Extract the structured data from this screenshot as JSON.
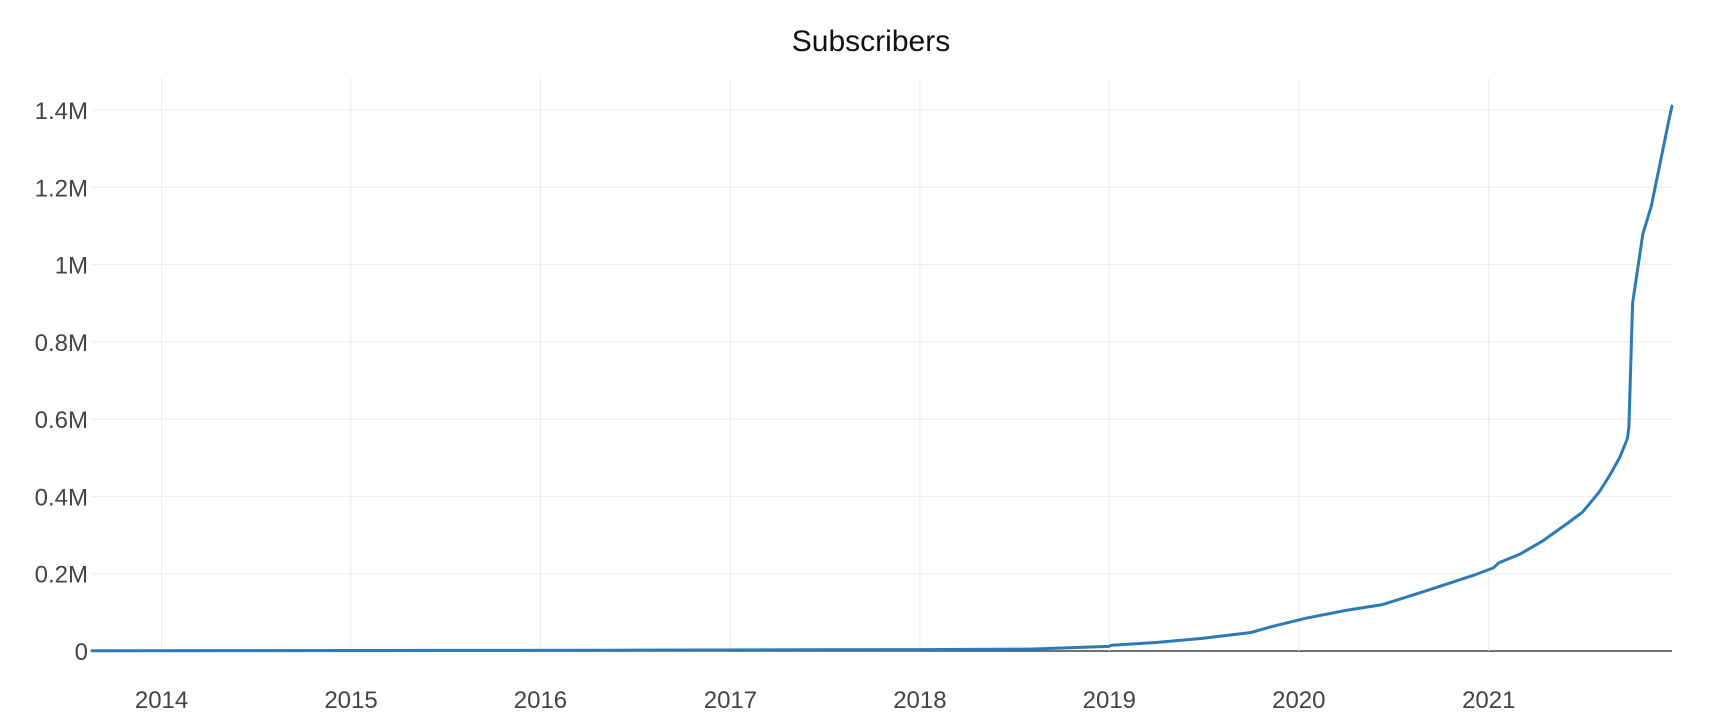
{
  "chart_data": {
    "type": "line",
    "title": "Subscribers",
    "xlabel": "",
    "ylabel": "",
    "x_range": [
      "2013-08-20",
      "2021-12-20"
    ],
    "ylim": [
      0,
      1400000
    ],
    "y_ticks": [
      {
        "value": 0,
        "label": "0"
      },
      {
        "value": 200000,
        "label": "0.2M"
      },
      {
        "value": 400000,
        "label": "0.4M"
      },
      {
        "value": 600000,
        "label": "0.6M"
      },
      {
        "value": 800000,
        "label": "0.8M"
      },
      {
        "value": 1000000,
        "label": "1M"
      },
      {
        "value": 1200000,
        "label": "1.2M"
      },
      {
        "value": 1400000,
        "label": "1.4M"
      }
    ],
    "x_ticks": [
      {
        "value": "2014-01-01",
        "label": "2014"
      },
      {
        "value": "2015-01-01",
        "label": "2015"
      },
      {
        "value": "2016-01-01",
        "label": "2016"
      },
      {
        "value": "2017-01-01",
        "label": "2017"
      },
      {
        "value": "2018-01-01",
        "label": "2018"
      },
      {
        "value": "2019-01-01",
        "label": "2019"
      },
      {
        "value": "2020-01-01",
        "label": "2020"
      },
      {
        "value": "2021-01-01",
        "label": "2021"
      }
    ],
    "grid": true,
    "series": [
      {
        "color": "#2c7bb6",
        "points": [
          {
            "x": "2013-08-20",
            "y": 500
          },
          {
            "x": "2014-06-01",
            "y": 1000
          },
          {
            "x": "2015-06-01",
            "y": 1500
          },
          {
            "x": "2016-06-01",
            "y": 2000
          },
          {
            "x": "2017-06-01",
            "y": 3000
          },
          {
            "x": "2018-01-01",
            "y": 3500
          },
          {
            "x": "2018-08-01",
            "y": 5000
          },
          {
            "x": "2018-12-31",
            "y": 12000
          },
          {
            "x": "2019-01-05",
            "y": 15000
          },
          {
            "x": "2019-04-01",
            "y": 22000
          },
          {
            "x": "2019-07-01",
            "y": 33000
          },
          {
            "x": "2019-10-01",
            "y": 48000
          },
          {
            "x": "2019-11-15",
            "y": 65000
          },
          {
            "x": "2020-01-15",
            "y": 85000
          },
          {
            "x": "2020-04-01",
            "y": 105000
          },
          {
            "x": "2020-06-10",
            "y": 120000
          },
          {
            "x": "2020-09-01",
            "y": 155000
          },
          {
            "x": "2020-12-01",
            "y": 195000
          },
          {
            "x": "2021-01-10",
            "y": 215000
          },
          {
            "x": "2021-01-20",
            "y": 228000
          },
          {
            "x": "2021-03-01",
            "y": 250000
          },
          {
            "x": "2021-04-15",
            "y": 285000
          },
          {
            "x": "2021-06-01",
            "y": 330000
          },
          {
            "x": "2021-07-01",
            "y": 360000
          },
          {
            "x": "2021-08-01",
            "y": 410000
          },
          {
            "x": "2021-08-20",
            "y": 450000
          },
          {
            "x": "2021-09-10",
            "y": 500000
          },
          {
            "x": "2021-09-25",
            "y": 550000
          },
          {
            "x": "2021-09-28",
            "y": 580000
          },
          {
            "x": "2021-10-05",
            "y": 900000
          },
          {
            "x": "2021-10-25",
            "y": 1080000
          },
          {
            "x": "2021-11-10",
            "y": 1150000
          },
          {
            "x": "2021-12-15",
            "y": 1380000
          },
          {
            "x": "2021-12-20",
            "y": 1410000
          }
        ]
      }
    ]
  }
}
